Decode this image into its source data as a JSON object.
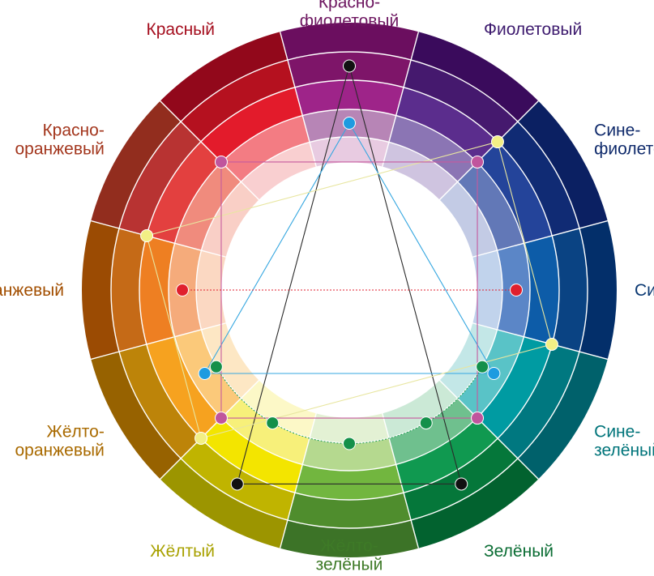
{
  "hues": [
    {
      "key": "red-violet",
      "lines": [
        "Красно-",
        "фиолетовый"
      ],
      "label_color": "#6d1660",
      "rings": [
        "#6b0e5f",
        "#7e1569",
        "#9e2489",
        "#b785b6",
        "#e8cbe1"
      ]
    },
    {
      "key": "violet",
      "lines": [
        "Фиолетовый"
      ],
      "label_color": "#3d1a6e",
      "rings": [
        "#3a0b5c",
        "#45196e",
        "#5b2d8d",
        "#8b75b4",
        "#cfc4e0"
      ]
    },
    {
      "key": "blue-violet",
      "lines": [
        "Сине-",
        "фиолетовый"
      ],
      "label_color": "#0f2a6b",
      "rings": [
        "#0b2062",
        "#102b74",
        "#24449a",
        "#6278b7",
        "#c3cbe5"
      ]
    },
    {
      "key": "blue",
      "lines": [
        "Синий"
      ],
      "label_color": "#0a3872",
      "rings": [
        "#032f6a",
        "#0a4383",
        "#0d5ca8",
        "#5b86c7",
        "#c1d3ec"
      ]
    },
    {
      "key": "blue-green",
      "lines": [
        "Сине-",
        "зелёный"
      ],
      "label_color": "#00747a",
      "rings": [
        "#00616b",
        "#007880",
        "#009ba2",
        "#59c3c7",
        "#c3e7e7"
      ]
    },
    {
      "key": "green",
      "lines": [
        "Зелёный"
      ],
      "label_color": "#0b6d34",
      "rings": [
        "#02622f",
        "#05773a",
        "#109950",
        "#6fc08e",
        "#cbe9d6"
      ]
    },
    {
      "key": "yellow-green",
      "lines": [
        "Жёлто-",
        "зелёный"
      ],
      "label_color": "#3e7a27",
      "rings": [
        "#3c7327",
        "#4f8d2d",
        "#72b63f",
        "#b5d98f",
        "#e3f1d4"
      ]
    },
    {
      "key": "yellow",
      "lines": [
        "Жёлтый"
      ],
      "label_color": "#a8a100",
      "rings": [
        "#9c9500",
        "#c0b400",
        "#f3e500",
        "#f7f07a",
        "#fcf8c7"
      ]
    },
    {
      "key": "yellow-orange",
      "lines": [
        "Жёлто-",
        "оранжевый"
      ],
      "label_color": "#a96a00",
      "rings": [
        "#976200",
        "#bd8409",
        "#f6a21f",
        "#fbc97a",
        "#fde7c4"
      ]
    },
    {
      "key": "orange",
      "lines": [
        "Оранжевый"
      ],
      "label_color": "#a24e00",
      "rings": [
        "#9b4b03",
        "#c56a17",
        "#ee7f22",
        "#f5ab7b",
        "#fbd8c2"
      ]
    },
    {
      "key": "red-orange",
      "lines": [
        "Красно-",
        "оранжевый"
      ],
      "label_color": "#a3361d",
      "rings": [
        "#922d1e",
        "#b83332",
        "#e3403f",
        "#f08b7d",
        "#f9cfc6"
      ]
    },
    {
      "key": "red",
      "lines": [
        "Красный"
      ],
      "label_color": "#a50f1f",
      "rings": [
        "#92081b",
        "#b5111f",
        "#e31b2b",
        "#f37c83",
        "#f9cfd0"
      ]
    }
  ],
  "schemes": [
    {
      "name": "triad-black",
      "color": "#2b2b2b",
      "dot": "#111111",
      "angles": [
        0,
        150,
        210
      ],
      "ring": 1.0,
      "connect": "polygon"
    },
    {
      "name": "triad-blue",
      "color": "#36a7e0",
      "dot": "#1d9be0",
      "angles": [
        0,
        120,
        240
      ],
      "ring": 3.0,
      "connect": "polygon"
    },
    {
      "name": "tetrad-yellow",
      "color": "#e8e6a0",
      "dot": "#f2ef85",
      "angles": [
        45,
        105,
        225,
        285
      ],
      "ring": 1.5,
      "connect": "polygon"
    },
    {
      "name": "square-pink",
      "color": "#c65a9e",
      "dot": "#c0559d",
      "angles": [
        45,
        135,
        225,
        315
      ],
      "ring": 2.5,
      "connect": "polygon"
    },
    {
      "name": "complement-red",
      "color": "#e02030",
      "dot": "#e0202d",
      "angles": [
        90,
        270
      ],
      "ring": 3.0,
      "connect": "polyline"
    },
    {
      "name": "analog-green",
      "color": "#1b9b4e",
      "dot": "#14904a",
      "angles": [
        120,
        150,
        180,
        210,
        240
      ],
      "ring": 3.5,
      "connect": "arc"
    }
  ]
}
